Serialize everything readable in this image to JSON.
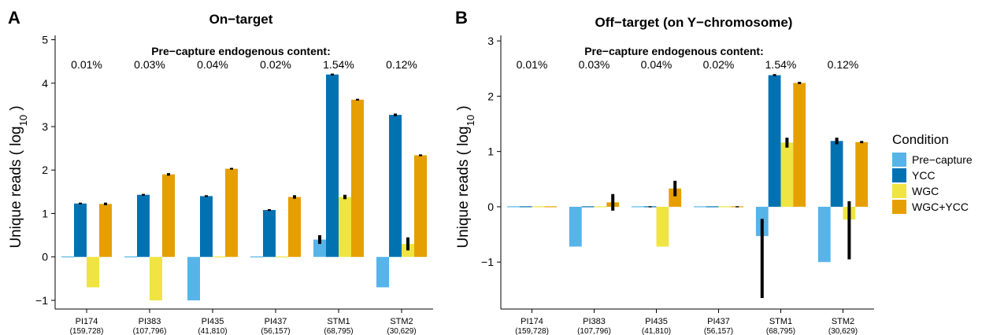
{
  "legend": {
    "title": "Condition",
    "items": [
      {
        "label": "Pre−capture",
        "color": "#56B4E9"
      },
      {
        "label": "YCC",
        "color": "#0072B2"
      },
      {
        "label": "WGC",
        "color": "#F0E442"
      },
      {
        "label": "WGC+YCC",
        "color": "#E69F00"
      }
    ]
  },
  "chart_data": [
    {
      "panel": "A",
      "type": "bar",
      "title": "On−target",
      "subtitle": "Pre−capture endogenous content:",
      "ylabel": "Unique reads ( log10 )",
      "ylim": [
        -1.2,
        5.1
      ],
      "yticks": [
        "−1",
        "0",
        "1",
        "2",
        "3",
        "4",
        "5"
      ],
      "categories": [
        "PI174",
        "PI383",
        "PI435",
        "PI437",
        "STM1",
        "STM2"
      ],
      "category_counts": [
        "(159,728)",
        "(107,796)",
        "(41,810)",
        "(56,157)",
        "(68,795)",
        "(30,629)"
      ],
      "endogenous_content": [
        "0.01%",
        "0.03%",
        "0.04%",
        "0.02%",
        "1.54%",
        "0.12%"
      ],
      "series": [
        {
          "name": "Pre−capture",
          "values": [
            0.0,
            0.0,
            -1.0,
            0.0,
            0.4,
            -0.7
          ],
          "err": [
            0,
            0,
            0,
            0,
            0.1,
            0
          ]
        },
        {
          "name": "YCC",
          "values": [
            1.23,
            1.43,
            1.4,
            1.08,
            4.2,
            3.27
          ],
          "err": [
            0.02,
            0.02,
            0.02,
            0.02,
            0.02,
            0.03
          ]
        },
        {
          "name": "WGC",
          "values": [
            -0.7,
            -1.0,
            0.0,
            0.0,
            1.38,
            0.3
          ],
          "err": [
            0,
            0,
            0,
            0,
            0.05,
            0.15
          ]
        },
        {
          "name": "WGC+YCC",
          "values": [
            1.22,
            1.9,
            2.03,
            1.38,
            3.62,
            2.34
          ],
          "err": [
            0.03,
            0.03,
            0.02,
            0.04,
            0.02,
            0.02
          ]
        }
      ]
    },
    {
      "panel": "B",
      "type": "bar",
      "title": "Off−target (on Y−chromosome)",
      "subtitle": "Pre−capture endogenous content:",
      "ylabel": "Unique reads ( log10 )",
      "ylim": [
        -1.85,
        3.1
      ],
      "yticks": [
        "−1",
        "0",
        "1",
        "2",
        "3"
      ],
      "categories": [
        "PI174",
        "PI383",
        "PI435",
        "PI437",
        "STM1",
        "STM2"
      ],
      "category_counts": [
        "(159,728)",
        "(107,796)",
        "(41,810)",
        "(56,157)",
        "(68,795)",
        "(30,629)"
      ],
      "endogenous_content": [
        "0.01%",
        "0.03%",
        "0.04%",
        "0.02%",
        "1.54%",
        "0.12%"
      ],
      "series": [
        {
          "name": "Pre−capture",
          "values": [
            0.0,
            -0.72,
            0.0,
            0.0,
            -0.53,
            -1.0
          ],
          "err": [
            0,
            0,
            0,
            0,
            0,
            0
          ]
        },
        {
          "name": "YCC",
          "values": [
            0.0,
            0.0,
            0.0,
            0.0,
            2.38,
            1.19
          ],
          "err": [
            0,
            0,
            0.01,
            0,
            0.02,
            0.06
          ]
        },
        {
          "name": "WGC",
          "values": [
            0.0,
            0.0,
            -0.72,
            0.0,
            1.16,
            -0.23
          ],
          "err": [
            0,
            0,
            0,
            0,
            0.09,
            0
          ]
        },
        {
          "name": "WGC+YCC",
          "values": [
            0.0,
            0.08,
            0.33,
            0.0,
            2.24,
            1.17
          ],
          "err": [
            0,
            0.15,
            0.14,
            0.01,
            0.02,
            0.02
          ]
        }
      ],
      "error_lines": [
        {
          "category": "STM1",
          "series": "Pre−capture",
          "from": -1.65,
          "to": -0.22
        },
        {
          "category": "STM2",
          "series": "WGC",
          "from": -0.95,
          "to": 0.1
        }
      ]
    }
  ]
}
